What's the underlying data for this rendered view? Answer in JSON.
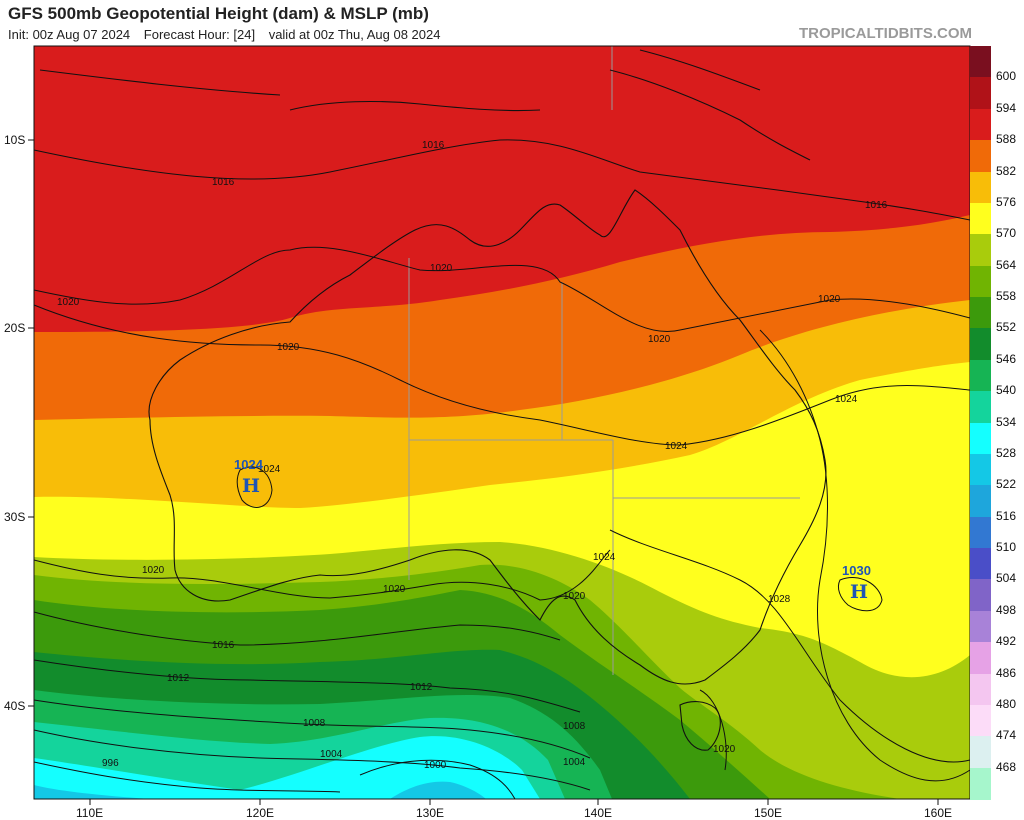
{
  "header": {
    "title": "GFS 500mb Geopotential Height (dam) & MSLP (mb)",
    "init": "Init: 00z Aug 07 2024",
    "forecast_hour": "Forecast Hour: [24]",
    "valid": "valid at 00z Thu, Aug 08 2024",
    "credit": "TROPICALTIDBITS.COM"
  },
  "axes": {
    "lon_labels": [
      "110E",
      "120E",
      "130E",
      "140E",
      "150E",
      "160E"
    ],
    "lat_labels": [
      "10S",
      "20S",
      "30S",
      "40S"
    ]
  },
  "colorbar": {
    "labels": [
      "600",
      "594",
      "588",
      "582",
      "576",
      "570",
      "564",
      "558",
      "552",
      "546",
      "540",
      "534",
      "528",
      "522",
      "516",
      "510",
      "504",
      "498",
      "492",
      "486",
      "480",
      "474",
      "468"
    ],
    "colors": [
      "#7a0f1f",
      "#b01218",
      "#d91c1c",
      "#f06a08",
      "#f8bd08",
      "#ffff1e",
      "#a9cc0c",
      "#70b402",
      "#3c9a0c",
      "#128c2c",
      "#16b454",
      "#14d49c",
      "#14ffff",
      "#14c8e6",
      "#1ea6dc",
      "#3278d2",
      "#4a4ec8",
      "#8064c8",
      "#a882d8",
      "#e6a2e6",
      "#f4c6f0",
      "#fcdcf8",
      "#dcf0f0",
      "#a6f6cc"
    ]
  },
  "isobar_labels": [
    "1016",
    "1016",
    "1016",
    "1020",
    "1020",
    "1020",
    "1020",
    "1020",
    "1024",
    "1024",
    "1024",
    "1024",
    "1020",
    "1020",
    "1020",
    "1016",
    "1012",
    "1012",
    "1008",
    "1008",
    "1004",
    "1004",
    "996",
    "1000",
    "1028",
    "1020"
  ],
  "highs": [
    {
      "letter": "H",
      "value": "1024"
    },
    {
      "letter": "H",
      "value": "1030"
    }
  ]
}
